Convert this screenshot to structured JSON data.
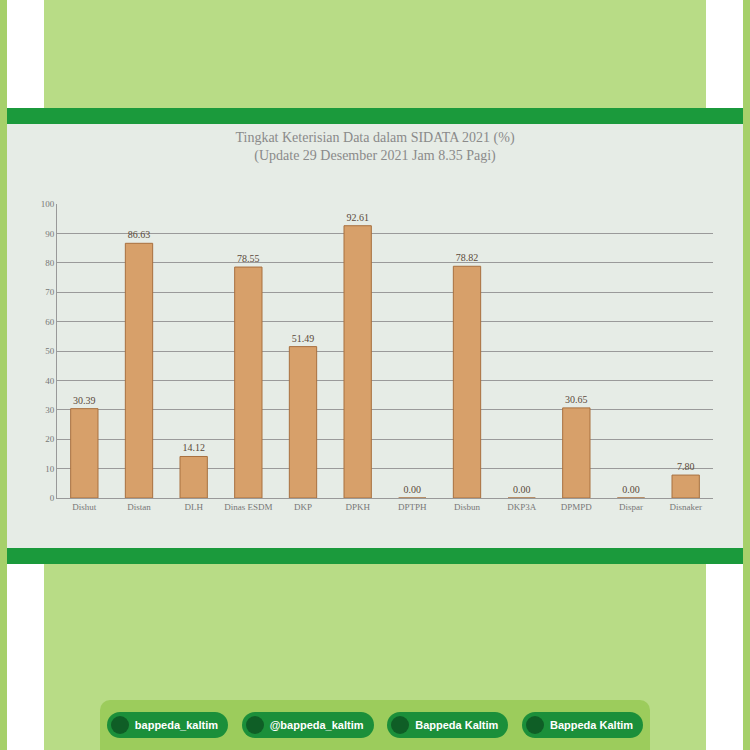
{
  "chart_data": {
    "type": "bar",
    "title": "Tingkat Keterisian Data dalam SIDATA 2021 (%)",
    "subtitle": "(Update 29 Desember 2021 Jam 8.35 Pagi)",
    "categories": [
      "Dishut",
      "Distan",
      "DLH",
      "Dinas ESDM",
      "DKP",
      "DPKH",
      "DPTPH",
      "Disbun",
      "DKP3A",
      "DPMPD",
      "Dispar",
      "Disnaker"
    ],
    "values": [
      30.39,
      86.63,
      14.12,
      78.55,
      51.49,
      92.61,
      0,
      78.82,
      0,
      30.65,
      0,
      7.8
    ],
    "value_labels": [
      "30.39",
      "86.63",
      "14.12",
      "78.55",
      "51.49",
      "92.61",
      "0.00",
      "78.82",
      "0.00",
      "30.65",
      "0.00",
      "7.80"
    ],
    "color": "#d7a06a",
    "ylim": [
      0,
      100
    ],
    "yticks": [
      0,
      10,
      20,
      30,
      40,
      50,
      60,
      70,
      80,
      90,
      100
    ],
    "grid": true,
    "data_labels": true
  },
  "footer": {
    "instagram": "bappeda_kaltim",
    "twitter": "@bappeda_kaltim",
    "facebook": "Bappeda Kaltim",
    "youtube": "Bappeda Kaltim"
  }
}
